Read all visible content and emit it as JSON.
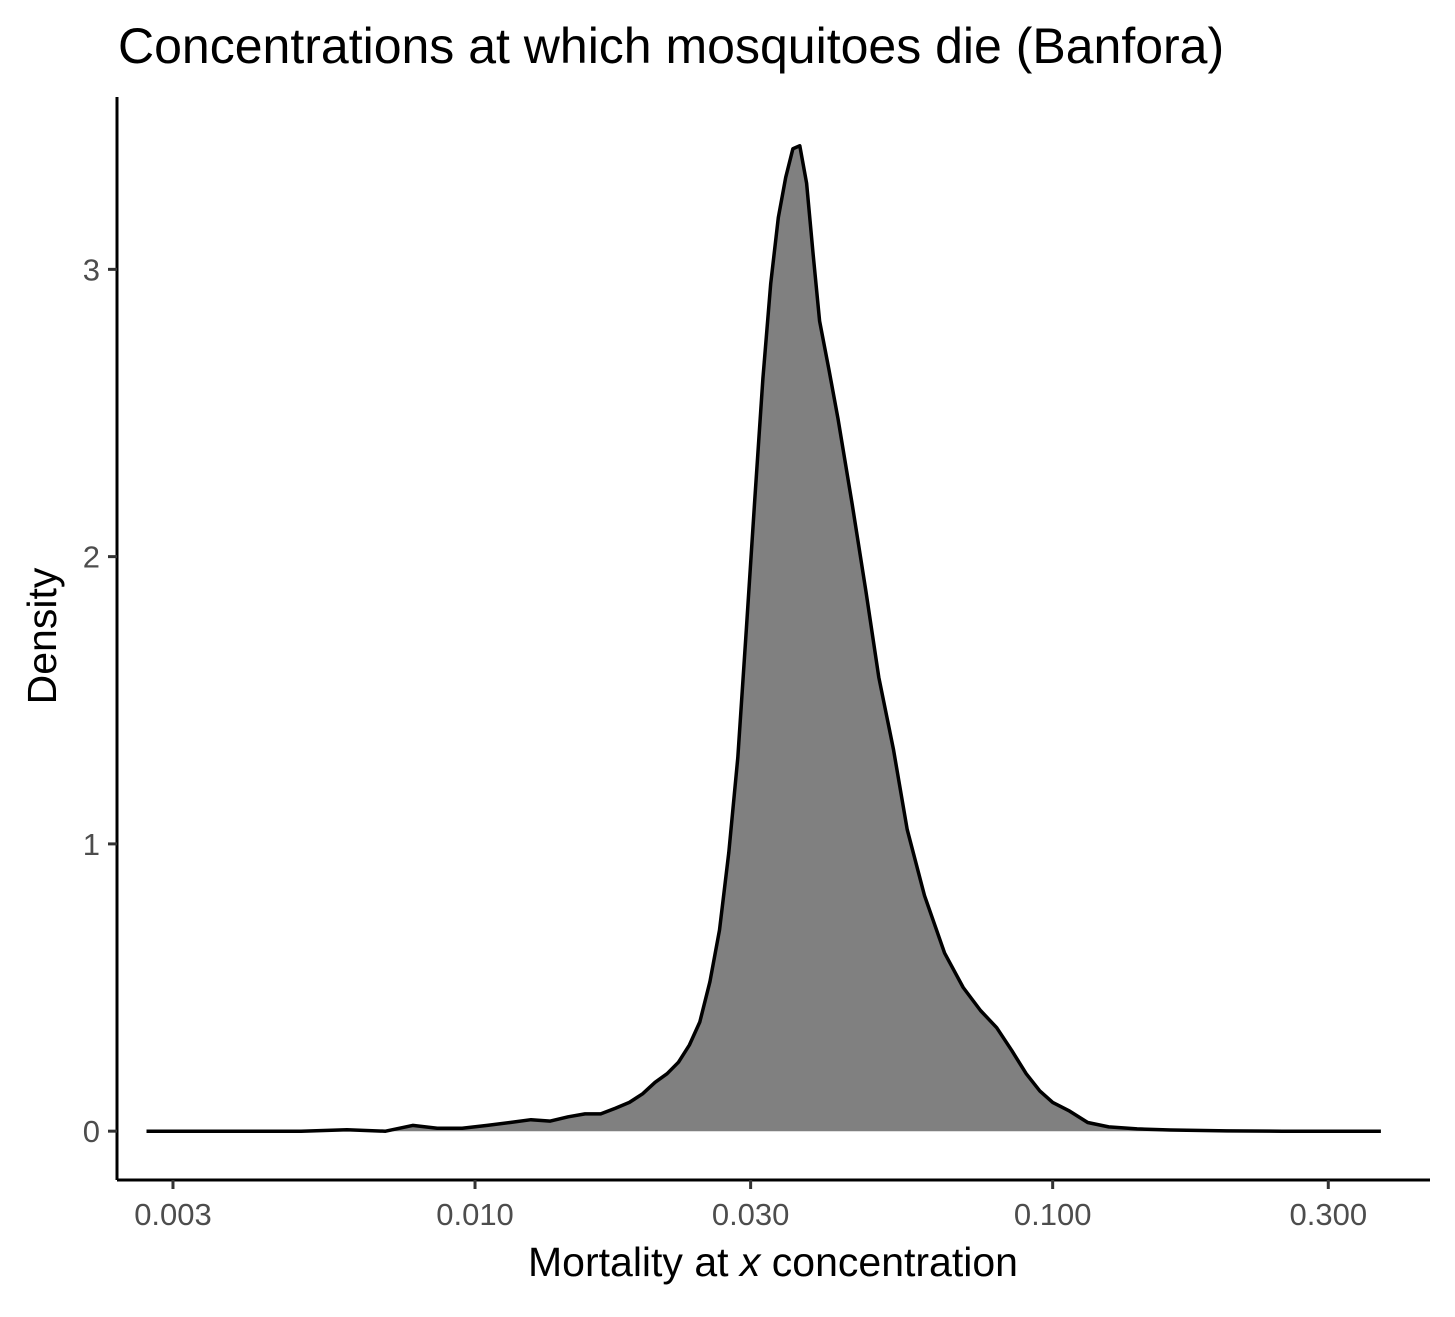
{
  "chart_data": {
    "type": "area",
    "title": "Concentrations at which mosquitoes die (Banfora)",
    "xlabel": {
      "prefix": "Mortality at ",
      "italic": "x",
      "suffix": " concentration"
    },
    "ylabel": "Density",
    "x_scale": "log10",
    "xlim": [
      0.0024,
      0.45
    ],
    "ylim": [
      -0.17,
      3.6
    ],
    "x_ticks": [
      {
        "value": 0.003,
        "label": "0.003"
      },
      {
        "value": 0.01,
        "label": "0.010"
      },
      {
        "value": 0.03,
        "label": "0.030"
      },
      {
        "value": 0.1,
        "label": "0.100"
      },
      {
        "value": 0.3,
        "label": "0.300"
      }
    ],
    "y_ticks": [
      {
        "value": 0,
        "label": "0"
      },
      {
        "value": 1,
        "label": "1"
      },
      {
        "value": 2,
        "label": "2"
      },
      {
        "value": 3,
        "label": "3"
      }
    ],
    "grid": false,
    "legend": "none",
    "fill_color": "#808080",
    "line_color": "#000000",
    "x": [
      0.0027,
      0.0032,
      0.004,
      0.005,
      0.006,
      0.007,
      0.0078,
      0.0086,
      0.0095,
      0.0105,
      0.0115,
      0.0125,
      0.0135,
      0.0145,
      0.0155,
      0.0165,
      0.0175,
      0.0185,
      0.0195,
      0.0205,
      0.0215,
      0.0225,
      0.0235,
      0.0245,
      0.0255,
      0.0265,
      0.0275,
      0.0285,
      0.0295,
      0.0305,
      0.0315,
      0.0325,
      0.0335,
      0.0345,
      0.0355,
      0.0365,
      0.0375,
      0.0385,
      0.0395,
      0.041,
      0.0425,
      0.045,
      0.0475,
      0.05,
      0.053,
      0.056,
      0.06,
      0.065,
      0.07,
      0.075,
      0.08,
      0.085,
      0.09,
      0.095,
      0.1,
      0.107,
      0.115,
      0.125,
      0.14,
      0.16,
      0.2,
      0.25,
      0.3,
      0.37
    ],
    "y": [
      0.0,
      0.0,
      0.0,
      0.0,
      0.005,
      0.0,
      0.02,
      0.01,
      0.01,
      0.02,
      0.03,
      0.04,
      0.035,
      0.05,
      0.06,
      0.06,
      0.08,
      0.1,
      0.13,
      0.17,
      0.2,
      0.24,
      0.3,
      0.38,
      0.52,
      0.7,
      0.97,
      1.3,
      1.75,
      2.2,
      2.62,
      2.95,
      3.18,
      3.32,
      3.42,
      3.43,
      3.3,
      3.05,
      2.82,
      2.65,
      2.48,
      2.18,
      1.88,
      1.58,
      1.33,
      1.05,
      0.82,
      0.62,
      0.5,
      0.42,
      0.36,
      0.28,
      0.2,
      0.14,
      0.1,
      0.07,
      0.03,
      0.015,
      0.008,
      0.004,
      0.001,
      0.0,
      0.0,
      0.0
    ]
  }
}
